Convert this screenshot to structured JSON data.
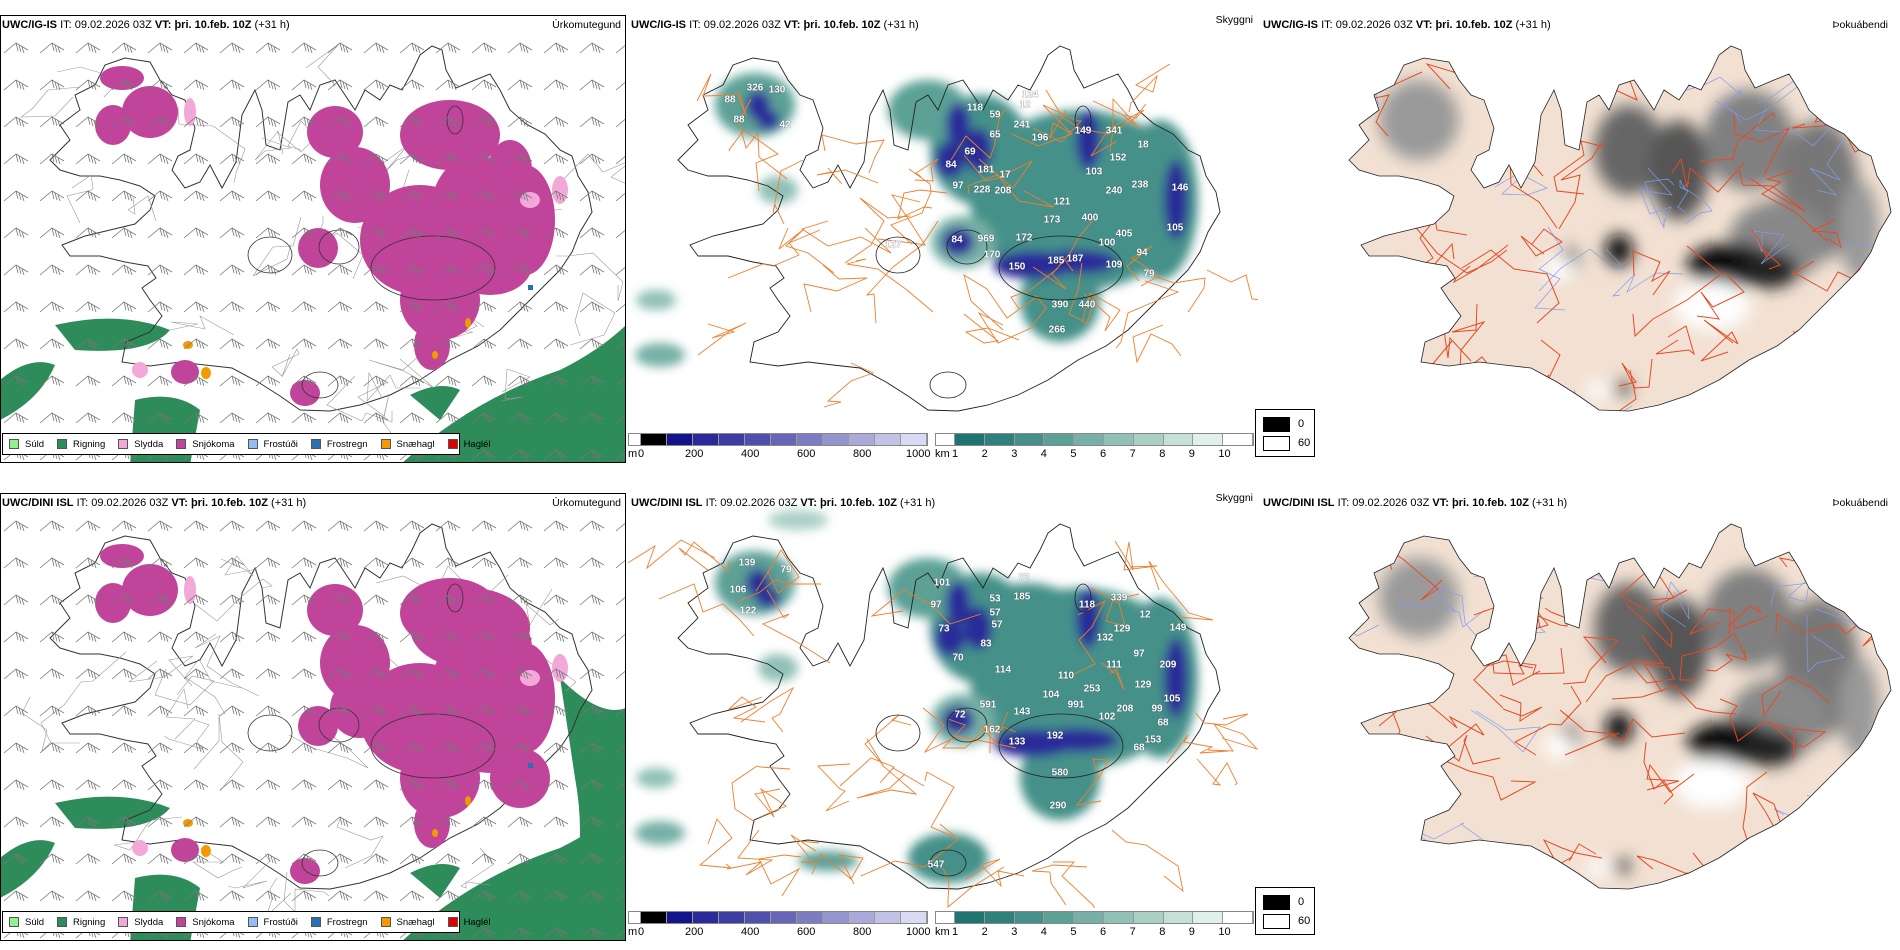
{
  "rows": [
    {
      "model": "UWC/IG-IS",
      "it_label": "IT:",
      "it": "09.02.2026 03Z",
      "vt_label": "VT:",
      "vt": "þri. 10.feb. 10Z",
      "lead": "(+31 h)",
      "params": [
        "Úrkomutegund",
        "Skyggni",
        "Þokuábendi"
      ],
      "cloud_base_labels": [
        "326",
        "130",
        "88",
        "42",
        "127",
        "88",
        "84",
        "118",
        "59",
        "65",
        "69",
        "181",
        "97",
        "228",
        "208",
        "17",
        "12",
        "241",
        "196",
        "149",
        "341",
        "152",
        "103",
        "240",
        "238",
        "18",
        "121",
        "173",
        "400",
        "84",
        "969",
        "172",
        "170",
        "150",
        "185",
        "187",
        "100",
        "405",
        "109",
        "94",
        "79",
        "105",
        "146",
        "390",
        "440",
        "266",
        "124"
      ]
    },
    {
      "model": "UWC/DINI ISL",
      "it_label": "IT:",
      "it": "09.02.2026 03Z",
      "vt_label": "VT:",
      "vt": "þri. 10.feb. 10Z",
      "lead": "(+31 h)",
      "params": [
        "Úrkomutegund",
        "Skyggni",
        "Þokuábendi"
      ],
      "cloud_base_labels": [
        "139",
        "79",
        "106",
        "122",
        "101",
        "97",
        "73",
        "70",
        "53",
        "57",
        "57",
        "83",
        "114",
        "72",
        "185",
        "118",
        "339",
        "129",
        "132",
        "97",
        "111",
        "149",
        "209",
        "110",
        "104",
        "591",
        "143",
        "991",
        "253",
        "72",
        "162",
        "133",
        "192",
        "208",
        "102",
        "153",
        "129",
        "105",
        "99",
        "68",
        "68",
        "580",
        "290",
        "547",
        "12"
      ]
    }
  ],
  "precip_legend": [
    {
      "label": "Súld",
      "color": "#8ef08e"
    },
    {
      "label": "Rigning",
      "color": "#2e8b5a"
    },
    {
      "label": "Slydda",
      "color": "#f2a9d8"
    },
    {
      "label": "Snjókoma",
      "color": "#c0449a"
    },
    {
      "label": "Frostúði",
      "color": "#90c0f2"
    },
    {
      "label": "Frostregn",
      "color": "#2a6fb2"
    },
    {
      "label": "Snæhagl",
      "color": "#f29a00"
    },
    {
      "label": "Haglél",
      "color": "#e00000"
    }
  ],
  "cloud_base_scale": {
    "unit": "m",
    "ticks": [
      "0",
      "200",
      "400",
      "600",
      "800",
      "1000"
    ],
    "colors": [
      "#ffffff",
      "#000000",
      "#14148a",
      "#2a2a98",
      "#3c3ca2",
      "#5050ac",
      "#6666b6",
      "#7c7cc2",
      "#9494ce",
      "#aaaada",
      "#c2c2e6",
      "#dadaf4"
    ]
  },
  "visibility_scale": {
    "unit": "km",
    "ticks": [
      "1",
      "2",
      "3",
      "4",
      "5",
      "6",
      "7",
      "8",
      "9",
      "10"
    ],
    "colors": [
      "#ffffff",
      "#1e7470",
      "#2f827c",
      "#459189",
      "#5ca096",
      "#76b0a6",
      "#90c0b6",
      "#aad0c6",
      "#c4e0d8",
      "#e0f0ea",
      "#ffffff"
    ]
  },
  "fog_scale": [
    {
      "label": "0",
      "color": "#000000"
    },
    {
      "label": "60",
      "color": "#ffffff"
    }
  ],
  "colors": {
    "land_fog": "#f2e1d3",
    "roads_vis": "#ef7f2e",
    "roads_fog": "#e64a24",
    "rivers": "#7f9cf0",
    "barbs": "#777777"
  }
}
